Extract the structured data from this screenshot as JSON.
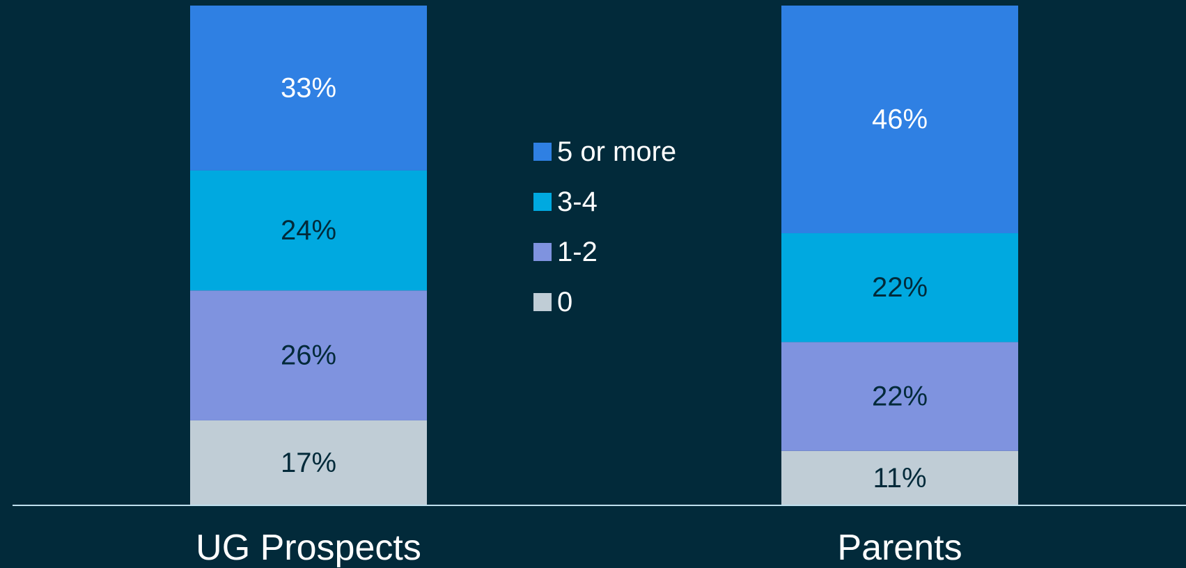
{
  "colors": {
    "background": "#022a3a",
    "axis": "#bfe0ee",
    "label_light": "#ffffff",
    "label_dark": "#022a3a"
  },
  "chart_data": {
    "type": "bar",
    "stacked": true,
    "orientation": "vertical",
    "title": "",
    "xlabel": "",
    "ylabel": "",
    "categories": [
      "UG Prospects",
      "Parents"
    ],
    "value_format": "percent",
    "ylim": [
      0,
      100
    ],
    "grid": false,
    "legend_position": "center",
    "series": [
      {
        "name": "0",
        "values": [
          17,
          11
        ],
        "color": "#c0cdd6",
        "label_color": "#022a3a"
      },
      {
        "name": "1-2",
        "values": [
          26,
          22
        ],
        "color": "#7f93df",
        "label_color": "#022a3a"
      },
      {
        "name": "3-4",
        "values": [
          24,
          22
        ],
        "color": "#00a9e0",
        "label_color": "#022a3a"
      },
      {
        "name": "5 or more",
        "values": [
          33,
          46
        ],
        "color": "#2f80e3",
        "label_color": "#ffffff"
      }
    ],
    "legend_order": [
      "5 or more",
      "3-4",
      "1-2",
      "0"
    ]
  }
}
